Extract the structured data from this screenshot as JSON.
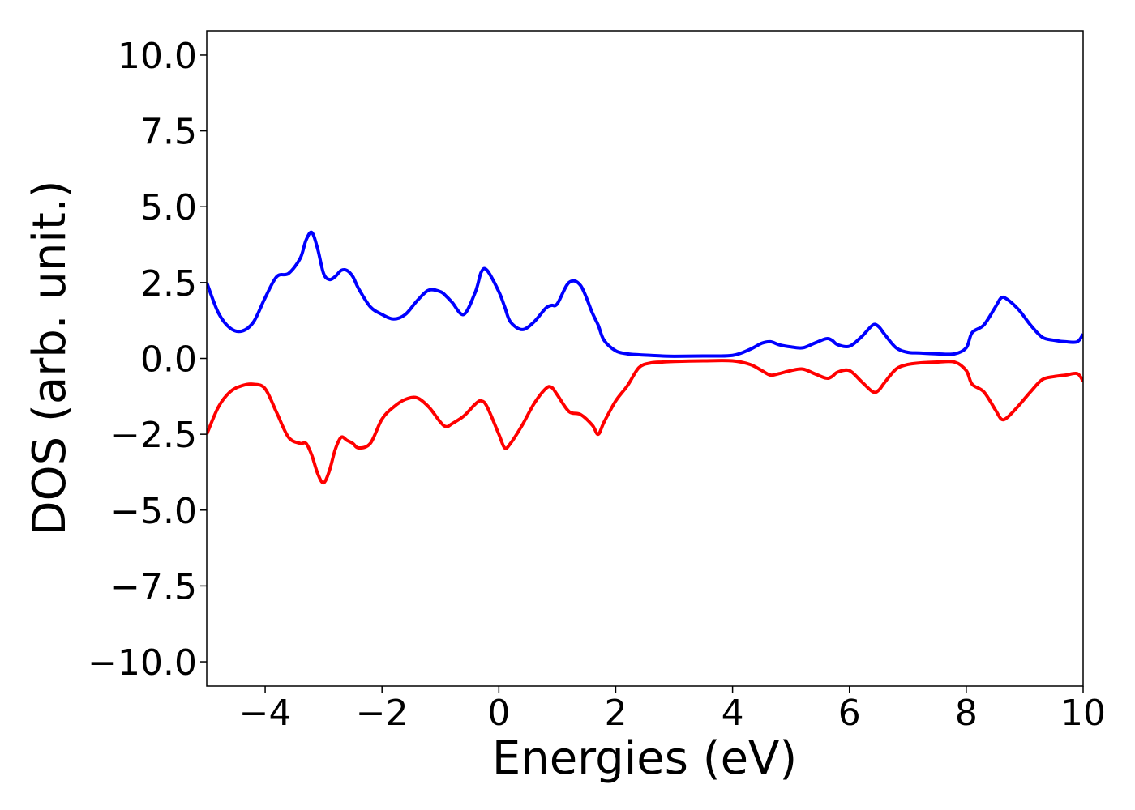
{
  "chart_data": {
    "type": "line",
    "title": "",
    "xlabel": "Energies (eV)",
    "ylabel": "DOS (arb. unit.)",
    "xlim": [
      -5,
      10
    ],
    "ylim": [
      -10.8,
      10.8
    ],
    "xticks": [
      -4,
      -2,
      0,
      2,
      4,
      6,
      8,
      10
    ],
    "xtick_labels": [
      "−4",
      "−2",
      "0",
      "2",
      "4",
      "6",
      "8",
      "10"
    ],
    "yticks": [
      10,
      7.5,
      5,
      2.5,
      0,
      -2.5,
      -5,
      -7.5,
      -10
    ],
    "ytick_labels": [
      "10.0",
      "7.5",
      "5.0",
      "2.5",
      "0.0",
      "−2.5",
      "−5.0",
      "−7.5",
      "−10.0"
    ],
    "grid": false,
    "legend": "none",
    "series": [
      {
        "color": "#0000ff",
        "x": [
          -5.0,
          -4.8,
          -4.6,
          -4.4,
          -4.2,
          -4.0,
          -3.8,
          -3.6,
          -3.4,
          -3.3,
          -3.2,
          -3.1,
          -3.0,
          -2.9,
          -2.8,
          -2.7,
          -2.6,
          -2.5,
          -2.4,
          -2.2,
          -2.0,
          -1.8,
          -1.6,
          -1.4,
          -1.2,
          -1.0,
          -0.9,
          -0.8,
          -0.6,
          -0.4,
          -0.3,
          -0.2,
          0.0,
          0.1,
          0.2,
          0.4,
          0.6,
          0.8,
          0.9,
          1.0,
          1.2,
          1.4,
          1.6,
          1.7,
          1.8,
          2.0,
          2.2,
          2.4,
          2.6,
          2.8,
          3.0,
          3.5,
          4.0,
          4.3,
          4.5,
          4.65,
          4.8,
          5.0,
          5.2,
          5.4,
          5.6,
          5.7,
          5.8,
          6.0,
          6.2,
          6.4,
          6.5,
          6.6,
          6.8,
          7.0,
          7.2,
          7.5,
          7.8,
          8.0,
          8.1,
          8.3,
          8.5,
          8.6,
          8.7,
          8.9,
          9.1,
          9.3,
          9.5,
          9.7,
          9.9,
          10.0
        ],
        "y": [
          2.5,
          1.5,
          1.0,
          0.9,
          1.2,
          2.0,
          2.7,
          2.8,
          3.3,
          3.9,
          4.15,
          3.6,
          2.8,
          2.6,
          2.7,
          2.9,
          2.9,
          2.7,
          2.3,
          1.7,
          1.45,
          1.3,
          1.45,
          1.9,
          2.25,
          2.2,
          2.05,
          1.85,
          1.45,
          2.2,
          2.85,
          2.9,
          2.2,
          1.7,
          1.2,
          0.95,
          1.2,
          1.65,
          1.75,
          1.8,
          2.5,
          2.4,
          1.5,
          1.1,
          0.6,
          0.25,
          0.15,
          0.12,
          0.1,
          0.08,
          0.07,
          0.08,
          0.1,
          0.3,
          0.5,
          0.55,
          0.45,
          0.38,
          0.35,
          0.5,
          0.65,
          0.6,
          0.45,
          0.4,
          0.7,
          1.1,
          1.05,
          0.8,
          0.35,
          0.2,
          0.18,
          0.15,
          0.15,
          0.35,
          0.85,
          1.1,
          1.7,
          2.0,
          1.95,
          1.6,
          1.1,
          0.7,
          0.6,
          0.55,
          0.55,
          0.8
        ]
      },
      {
        "color": "#ff0000",
        "x": [
          -5.0,
          -4.8,
          -4.6,
          -4.4,
          -4.2,
          -4.0,
          -3.8,
          -3.6,
          -3.4,
          -3.3,
          -3.2,
          -3.1,
          -3.0,
          -2.9,
          -2.8,
          -2.7,
          -2.6,
          -2.5,
          -2.4,
          -2.2,
          -2.0,
          -1.8,
          -1.6,
          -1.4,
          -1.2,
          -1.0,
          -0.9,
          -0.8,
          -0.6,
          -0.4,
          -0.3,
          -0.2,
          0.0,
          0.1,
          0.2,
          0.4,
          0.6,
          0.8,
          0.9,
          1.0,
          1.2,
          1.4,
          1.6,
          1.7,
          1.8,
          2.0,
          2.2,
          2.4,
          2.6,
          2.8,
          3.0,
          3.5,
          4.0,
          4.3,
          4.5,
          4.65,
          4.8,
          5.0,
          5.2,
          5.4,
          5.6,
          5.7,
          5.8,
          6.0,
          6.2,
          6.4,
          6.5,
          6.6,
          6.8,
          7.0,
          7.2,
          7.5,
          7.8,
          8.0,
          8.1,
          8.3,
          8.5,
          8.6,
          8.7,
          8.9,
          9.1,
          9.3,
          9.5,
          9.7,
          9.9,
          10.0
        ],
        "y": [
          -2.5,
          -1.6,
          -1.1,
          -0.9,
          -0.85,
          -1.0,
          -1.8,
          -2.6,
          -2.8,
          -2.8,
          -3.2,
          -3.8,
          -4.1,
          -3.7,
          -3.0,
          -2.6,
          -2.7,
          -2.8,
          -2.95,
          -2.8,
          -2.0,
          -1.6,
          -1.35,
          -1.3,
          -1.6,
          -2.1,
          -2.25,
          -2.15,
          -1.9,
          -1.5,
          -1.4,
          -1.6,
          -2.5,
          -2.95,
          -2.8,
          -2.2,
          -1.5,
          -1.0,
          -0.95,
          -1.2,
          -1.75,
          -1.85,
          -2.2,
          -2.5,
          -2.1,
          -1.4,
          -0.9,
          -0.3,
          -0.15,
          -0.12,
          -0.1,
          -0.08,
          -0.08,
          -0.2,
          -0.4,
          -0.55,
          -0.5,
          -0.4,
          -0.35,
          -0.5,
          -0.65,
          -0.6,
          -0.45,
          -0.4,
          -0.75,
          -1.1,
          -1.05,
          -0.8,
          -0.35,
          -0.2,
          -0.15,
          -0.12,
          -0.12,
          -0.4,
          -0.85,
          -1.1,
          -1.7,
          -2.0,
          -1.95,
          -1.55,
          -1.1,
          -0.7,
          -0.6,
          -0.55,
          -0.5,
          -0.75
        ]
      }
    ]
  }
}
